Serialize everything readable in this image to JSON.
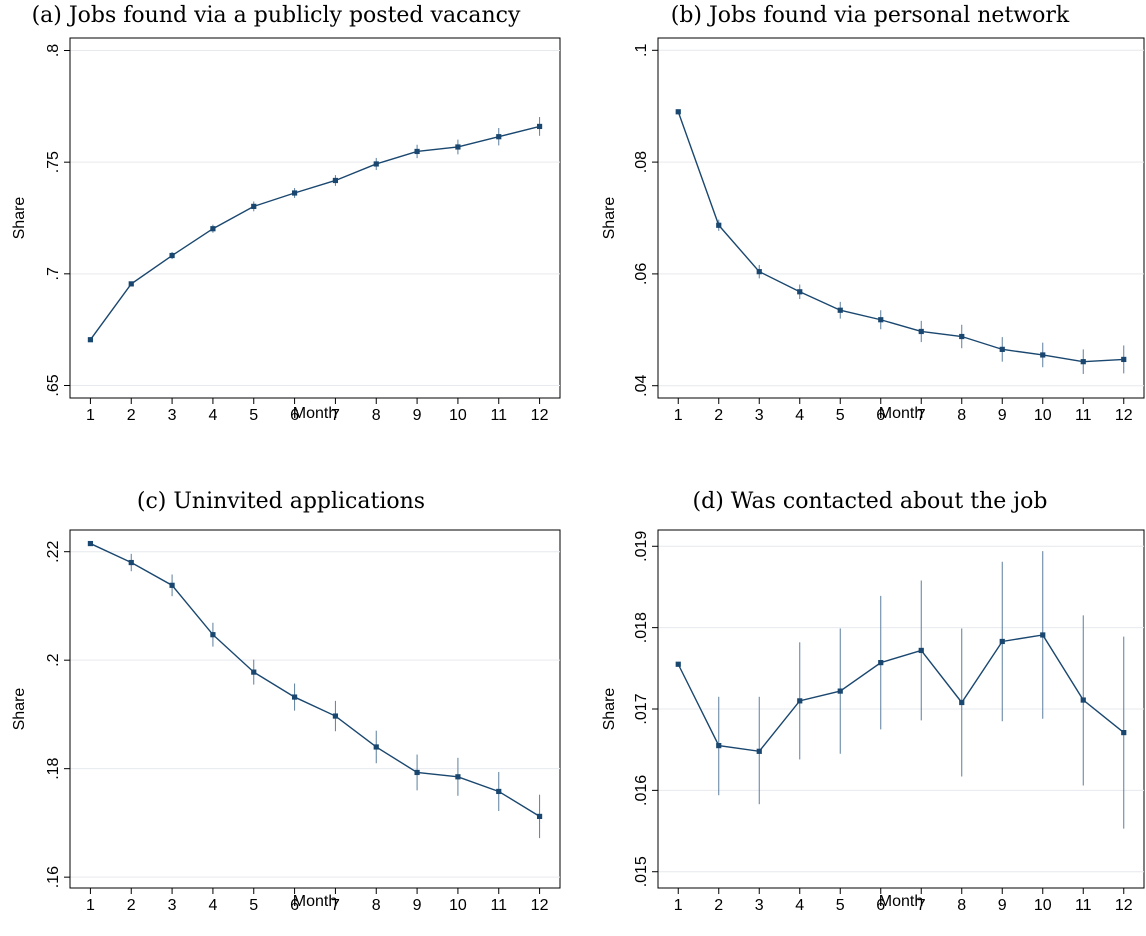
{
  "colors": {
    "series": "#1a476f",
    "ci": "#5b7f9e",
    "grid": "#e6e9ee"
  },
  "chart_data": [
    {
      "type": "line",
      "title": "(a) Jobs found via a publicly posted vacancy",
      "xlabel": "Month",
      "ylabel": "Share",
      "x": [
        1,
        2,
        3,
        4,
        5,
        6,
        7,
        8,
        9,
        10,
        11,
        12
      ],
      "values": [
        0.6705,
        0.6955,
        0.7082,
        0.7202,
        0.7302,
        0.7362,
        0.7418,
        0.7492,
        0.7548,
        0.7568,
        0.7614,
        0.766
      ],
      "ci_low": [
        0.6695,
        0.6945,
        0.7066,
        0.7184,
        0.728,
        0.734,
        0.7394,
        0.7465,
        0.7518,
        0.7535,
        0.7575,
        0.7618
      ],
      "ci_high": [
        0.6715,
        0.6965,
        0.7098,
        0.722,
        0.7324,
        0.7384,
        0.7442,
        0.7519,
        0.7578,
        0.7601,
        0.7653,
        0.7702
      ],
      "yticks": [
        0.65,
        0.7,
        0.75,
        0.8
      ],
      "ytick_labels": [
        ".65",
        ".7",
        ".75",
        ".8"
      ],
      "xticks": [
        1,
        2,
        3,
        4,
        5,
        6,
        7,
        8,
        9,
        10,
        11,
        12
      ],
      "ylim": [
        0.6444,
        0.8056
      ],
      "xlim": [
        0.5,
        12.5
      ],
      "grid": true
    },
    {
      "type": "line",
      "title": "(b) Jobs found via personal network",
      "xlabel": "Month",
      "ylabel": "Share",
      "x": [
        1,
        2,
        3,
        4,
        5,
        6,
        7,
        8,
        9,
        10,
        11,
        12
      ],
      "values": [
        0.089,
        0.0687,
        0.0604,
        0.0568,
        0.0535,
        0.0518,
        0.0497,
        0.0488,
        0.0465,
        0.0455,
        0.0443,
        0.0447
      ],
      "ci_low": [
        0.0887,
        0.0677,
        0.0592,
        0.0555,
        0.052,
        0.0501,
        0.0478,
        0.0467,
        0.0443,
        0.0433,
        0.0421,
        0.0422
      ],
      "ci_high": [
        0.0893,
        0.0697,
        0.0616,
        0.0581,
        0.055,
        0.0535,
        0.0516,
        0.0509,
        0.0487,
        0.0477,
        0.0465,
        0.0472
      ],
      "yticks": [
        0.04,
        0.06,
        0.08,
        0.1
      ],
      "ytick_labels": [
        ".04",
        ".06",
        ".08",
        ".1"
      ],
      "xticks": [
        1,
        2,
        3,
        4,
        5,
        6,
        7,
        8,
        9,
        10,
        11,
        12
      ],
      "ylim": [
        0.0378,
        0.1022
      ],
      "xlim": [
        0.5,
        12.5
      ],
      "grid": true
    },
    {
      "type": "line",
      "title": "(c) Uninvited applications",
      "xlabel": "Month",
      "ylabel": "Share",
      "x": [
        1,
        2,
        3,
        4,
        5,
        6,
        7,
        8,
        9,
        10,
        11,
        12
      ],
      "values": [
        0.2215,
        0.218,
        0.2138,
        0.2047,
        0.1978,
        0.1932,
        0.1897,
        0.184,
        0.1793,
        0.1785,
        0.1758,
        0.1712
      ],
      "ci_low": [
        0.2213,
        0.2164,
        0.2118,
        0.2025,
        0.1955,
        0.1907,
        0.1869,
        0.181,
        0.176,
        0.175,
        0.1722,
        0.1672
      ],
      "ci_high": [
        0.2217,
        0.2196,
        0.2158,
        0.2069,
        0.2001,
        0.1957,
        0.1925,
        0.187,
        0.1826,
        0.182,
        0.1794,
        0.1752
      ],
      "yticks": [
        0.16,
        0.18,
        0.2,
        0.22
      ],
      "ytick_labels": [
        ".16",
        ".18",
        ".2",
        ".22"
      ],
      "xticks": [
        1,
        2,
        3,
        4,
        5,
        6,
        7,
        8,
        9,
        10,
        11,
        12
      ],
      "ylim": [
        0.158,
        0.224
      ],
      "xlim": [
        0.5,
        12.5
      ],
      "grid": true
    },
    {
      "type": "line",
      "title": "(d) Was contacted about the job",
      "xlabel": "Month",
      "ylabel": "Share",
      "x": [
        1,
        2,
        3,
        4,
        5,
        6,
        7,
        8,
        9,
        10,
        11,
        12
      ],
      "values": [
        0.01755,
        0.01655,
        0.01648,
        0.0171,
        0.01722,
        0.01757,
        0.01772,
        0.01708,
        0.01783,
        0.01791,
        0.01711,
        0.01671
      ],
      "ci_low": [
        0.01755,
        0.01594,
        0.01583,
        0.01638,
        0.01645,
        0.01675,
        0.01686,
        0.01617,
        0.01685,
        0.01688,
        0.01606,
        0.01553
      ],
      "ci_high": [
        0.01755,
        0.01715,
        0.01715,
        0.01782,
        0.01799,
        0.01839,
        0.01858,
        0.01799,
        0.01881,
        0.01894,
        0.01815,
        0.01789
      ],
      "yticks": [
        0.015,
        0.016,
        0.017,
        0.018,
        0.019
      ],
      "ytick_labels": [
        ".015",
        ".016",
        ".017",
        ".018",
        ".019"
      ],
      "xticks": [
        1,
        2,
        3,
        4,
        5,
        6,
        7,
        8,
        9,
        10,
        11,
        12
      ],
      "ylim": [
        0.0148,
        0.0192
      ],
      "xlim": [
        0.5,
        12.5
      ],
      "grid": true
    }
  ]
}
